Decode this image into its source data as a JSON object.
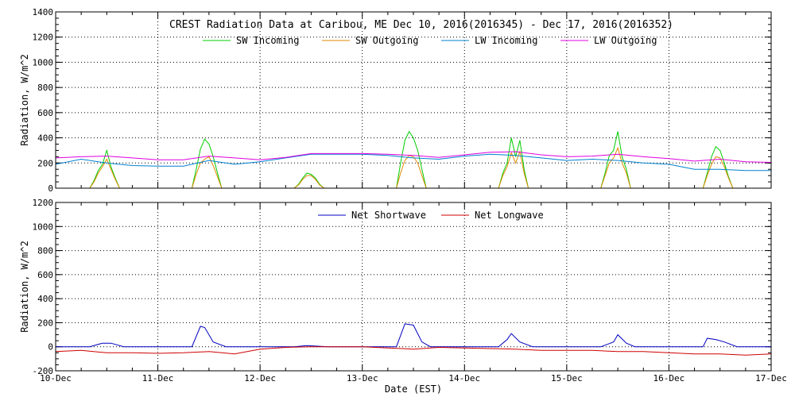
{
  "chart_data": [
    {
      "type": "line",
      "title": "CREST Radiation Data at Caribou, ME   Dec 10, 2016(2016345) - Dec 17, 2016(2016352)",
      "ylabel": "Radiation, W/m^2",
      "ylim": [
        0,
        1400
      ],
      "yticks": [
        0,
        200,
        400,
        600,
        800,
        1000,
        1200,
        1400
      ],
      "xlim": [
        "2016-12-10",
        "2016-12-17"
      ],
      "grid": true,
      "legend": "top",
      "series": [
        {
          "name": "SW Incoming",
          "color": "#00cc00",
          "x": [
            "2016-12-10T08:00",
            "2016-12-10T09:00",
            "2016-12-10T10:00",
            "2016-12-10T11:00",
            "2016-12-10T12:00",
            "2016-12-10T13:00",
            "2016-12-10T14:00",
            "2016-12-10T15:00",
            "2016-12-11T08:00",
            "2016-12-11T09:00",
            "2016-12-11T10:00",
            "2016-12-11T11:00",
            "2016-12-11T12:00",
            "2016-12-11T13:00",
            "2016-12-11T14:00",
            "2016-12-11T15:00",
            "2016-12-12T08:00",
            "2016-12-12T09:00",
            "2016-12-12T10:00",
            "2016-12-12T11:00",
            "2016-12-12T12:00",
            "2016-12-12T13:00",
            "2016-12-12T14:00",
            "2016-12-12T15:00",
            "2016-12-13T08:00",
            "2016-12-13T09:00",
            "2016-12-13T10:00",
            "2016-12-13T11:00",
            "2016-12-13T12:00",
            "2016-12-13T13:00",
            "2016-12-13T14:00",
            "2016-12-13T15:00",
            "2016-12-14T08:00",
            "2016-12-14T09:00",
            "2016-12-14T10:00",
            "2016-12-14T11:00",
            "2016-12-14T12:00",
            "2016-12-14T13:00",
            "2016-12-14T14:00",
            "2016-12-14T15:00",
            "2016-12-15T08:00",
            "2016-12-15T09:00",
            "2016-12-15T10:00",
            "2016-12-15T11:00",
            "2016-12-15T12:00",
            "2016-12-15T13:00",
            "2016-12-15T14:00",
            "2016-12-15T15:00",
            "2016-12-16T08:00",
            "2016-12-16T09:00",
            "2016-12-16T10:00",
            "2016-12-16T11:00",
            "2016-12-16T12:00",
            "2016-12-16T13:00",
            "2016-12-16T14:00",
            "2016-12-16T15:00"
          ],
          "values": [
            0,
            60,
            140,
            190,
            300,
            170,
            80,
            0,
            0,
            150,
            310,
            390,
            350,
            250,
            120,
            0,
            0,
            30,
            80,
            120,
            110,
            80,
            30,
            0,
            0,
            200,
            380,
            450,
            400,
            300,
            150,
            0,
            0,
            120,
            200,
            400,
            250,
            380,
            150,
            0,
            0,
            120,
            260,
            300,
            450,
            250,
            150,
            0,
            0,
            120,
            250,
            330,
            300,
            200,
            90,
            0
          ]
        },
        {
          "name": "SW Outgoing",
          "color": "#e08a00",
          "x": [
            "2016-12-10T08:00",
            "2016-12-10T09:00",
            "2016-12-10T10:00",
            "2016-12-10T11:00",
            "2016-12-10T12:00",
            "2016-12-10T13:00",
            "2016-12-10T14:00",
            "2016-12-10T15:00",
            "2016-12-11T08:00",
            "2016-12-11T09:00",
            "2016-12-11T10:00",
            "2016-12-11T11:00",
            "2016-12-11T12:00",
            "2016-12-11T13:00",
            "2016-12-11T14:00",
            "2016-12-11T15:00",
            "2016-12-12T08:00",
            "2016-12-12T09:00",
            "2016-12-12T10:00",
            "2016-12-12T11:00",
            "2016-12-12T12:00",
            "2016-12-12T13:00",
            "2016-12-12T14:00",
            "2016-12-12T15:00",
            "2016-12-13T08:00",
            "2016-12-13T09:00",
            "2016-12-13T10:00",
            "2016-12-13T11:00",
            "2016-12-13T12:00",
            "2016-12-13T13:00",
            "2016-12-13T14:00",
            "2016-12-13T15:00",
            "2016-12-14T08:00",
            "2016-12-14T09:00",
            "2016-12-14T10:00",
            "2016-12-14T11:00",
            "2016-12-14T12:00",
            "2016-12-14T13:00",
            "2016-12-14T14:00",
            "2016-12-14T15:00",
            "2016-12-15T08:00",
            "2016-12-15T09:00",
            "2016-12-15T10:00",
            "2016-12-15T11:00",
            "2016-12-15T12:00",
            "2016-12-15T13:00",
            "2016-12-15T14:00",
            "2016-12-15T15:00",
            "2016-12-16T08:00",
            "2016-12-16T09:00",
            "2016-12-16T10:00",
            "2016-12-16T11:00",
            "2016-12-16T12:00",
            "2016-12-16T13:00",
            "2016-12-16T14:00",
            "2016-12-16T15:00"
          ],
          "values": [
            0,
            50,
            120,
            170,
            230,
            150,
            70,
            0,
            0,
            110,
            200,
            230,
            250,
            180,
            90,
            0,
            0,
            25,
            70,
            100,
            100,
            70,
            25,
            0,
            0,
            120,
            220,
            260,
            250,
            200,
            100,
            0,
            0,
            100,
            170,
            280,
            200,
            290,
            120,
            0,
            0,
            100,
            200,
            240,
            320,
            200,
            120,
            0,
            0,
            100,
            190,
            250,
            240,
            170,
            80,
            0
          ]
        },
        {
          "name": "LW Incoming",
          "color": "#0080d0",
          "x": [
            "2016-12-10T00:00",
            "2016-12-10T06:00",
            "2016-12-10T12:00",
            "2016-12-10T18:00",
            "2016-12-11T00:00",
            "2016-12-11T06:00",
            "2016-12-11T12:00",
            "2016-12-11T18:00",
            "2016-12-12T00:00",
            "2016-12-12T06:00",
            "2016-12-12T12:00",
            "2016-12-12T18:00",
            "2016-12-13T00:00",
            "2016-12-13T06:00",
            "2016-12-13T12:00",
            "2016-12-13T18:00",
            "2016-12-14T00:00",
            "2016-12-14T06:00",
            "2016-12-14T12:00",
            "2016-12-14T18:00",
            "2016-12-15T00:00",
            "2016-12-15T06:00",
            "2016-12-15T12:00",
            "2016-12-15T18:00",
            "2016-12-16T00:00",
            "2016-12-16T06:00",
            "2016-12-16T12:00",
            "2016-12-16T18:00",
            "2016-12-17T00:00"
          ],
          "values": [
            190,
            230,
            200,
            180,
            175,
            175,
            220,
            190,
            210,
            240,
            270,
            270,
            270,
            260,
            240,
            230,
            255,
            270,
            260,
            240,
            220,
            230,
            220,
            200,
            190,
            150,
            150,
            140,
            140
          ]
        },
        {
          "name": "LW Outgoing",
          "color": "#e000e0",
          "x": [
            "2016-12-10T00:00",
            "2016-12-10T06:00",
            "2016-12-10T12:00",
            "2016-12-10T18:00",
            "2016-12-11T00:00",
            "2016-12-11T06:00",
            "2016-12-11T12:00",
            "2016-12-11T18:00",
            "2016-12-12T00:00",
            "2016-12-12T06:00",
            "2016-12-12T12:00",
            "2016-12-12T18:00",
            "2016-12-13T00:00",
            "2016-12-13T06:00",
            "2016-12-13T12:00",
            "2016-12-13T18:00",
            "2016-12-14T00:00",
            "2016-12-14T06:00",
            "2016-12-14T12:00",
            "2016-12-14T18:00",
            "2016-12-15T00:00",
            "2016-12-15T06:00",
            "2016-12-15T12:00",
            "2016-12-15T18:00",
            "2016-12-16T00:00",
            "2016-12-16T06:00",
            "2016-12-16T12:00",
            "2016-12-16T18:00",
            "2016-12-17T00:00"
          ],
          "values": [
            240,
            250,
            255,
            240,
            225,
            225,
            255,
            240,
            225,
            245,
            275,
            275,
            275,
            270,
            260,
            245,
            265,
            285,
            290,
            265,
            250,
            255,
            270,
            250,
            235,
            215,
            230,
            210,
            205
          ]
        }
      ]
    },
    {
      "type": "line",
      "ylabel": "Radiation, W/m^2",
      "xlabel": "Date (EST)",
      "ylim": [
        -200,
        1200
      ],
      "yticks": [
        -200,
        0,
        200,
        400,
        600,
        800,
        1000,
        1200
      ],
      "xlim": [
        "2016-12-10",
        "2016-12-17"
      ],
      "xticks": [
        "10-Dec",
        "11-Dec",
        "12-Dec",
        "13-Dec",
        "14-Dec",
        "15-Dec",
        "16-Dec",
        "17-Dec"
      ],
      "grid": true,
      "legend": "top",
      "series": [
        {
          "name": "Net Shortwave",
          "color": "#0000c0",
          "x": [
            "2016-12-10T00:00",
            "2016-12-10T08:00",
            "2016-12-10T11:00",
            "2016-12-10T13:00",
            "2016-12-10T16:00",
            "2016-12-11T08:00",
            "2016-12-11T10:00",
            "2016-12-11T11:00",
            "2016-12-11T13:00",
            "2016-12-11T16:00",
            "2016-12-12T08:00",
            "2016-12-12T11:00",
            "2016-12-12T16:00",
            "2016-12-13T08:00",
            "2016-12-13T10:00",
            "2016-12-13T12:00",
            "2016-12-13T14:00",
            "2016-12-13T16:00",
            "2016-12-14T08:00",
            "2016-12-14T10:00",
            "2016-12-14T11:00",
            "2016-12-14T13:00",
            "2016-12-14T16:00",
            "2016-12-15T08:00",
            "2016-12-15T11:00",
            "2016-12-15T12:00",
            "2016-12-15T14:00",
            "2016-12-15T16:00",
            "2016-12-16T08:00",
            "2016-12-16T09:00",
            "2016-12-16T11:00",
            "2016-12-16T13:00",
            "2016-12-16T16:00",
            "2016-12-17T00:00"
          ],
          "values": [
            0,
            0,
            30,
            30,
            0,
            0,
            170,
            160,
            40,
            0,
            0,
            10,
            0,
            0,
            190,
            180,
            40,
            0,
            0,
            60,
            110,
            40,
            0,
            0,
            40,
            100,
            30,
            0,
            0,
            70,
            60,
            40,
            0,
            0
          ]
        },
        {
          "name": "Net Longwave",
          "color": "#d00000",
          "x": [
            "2016-12-10T00:00",
            "2016-12-10T06:00",
            "2016-12-10T12:00",
            "2016-12-10T18:00",
            "2016-12-11T00:00",
            "2016-12-11T06:00",
            "2016-12-11T12:00",
            "2016-12-11T18:00",
            "2016-12-12T00:00",
            "2016-12-12T06:00",
            "2016-12-12T12:00",
            "2016-12-12T18:00",
            "2016-12-13T00:00",
            "2016-12-13T06:00",
            "2016-12-13T12:00",
            "2016-12-13T18:00",
            "2016-12-14T00:00",
            "2016-12-14T06:00",
            "2016-12-14T12:00",
            "2016-12-14T18:00",
            "2016-12-15T00:00",
            "2016-12-15T06:00",
            "2016-12-15T12:00",
            "2016-12-15T18:00",
            "2016-12-16T00:00",
            "2016-12-16T06:00",
            "2016-12-16T12:00",
            "2016-12-16T18:00",
            "2016-12-17T00:00"
          ],
          "values": [
            -40,
            -30,
            -50,
            -50,
            -55,
            -50,
            -40,
            -60,
            -20,
            -5,
            0,
            0,
            0,
            -10,
            -20,
            -5,
            -10,
            -15,
            -20,
            -30,
            -30,
            -30,
            -40,
            -40,
            -50,
            -60,
            -60,
            -70,
            -60
          ]
        }
      ]
    }
  ]
}
